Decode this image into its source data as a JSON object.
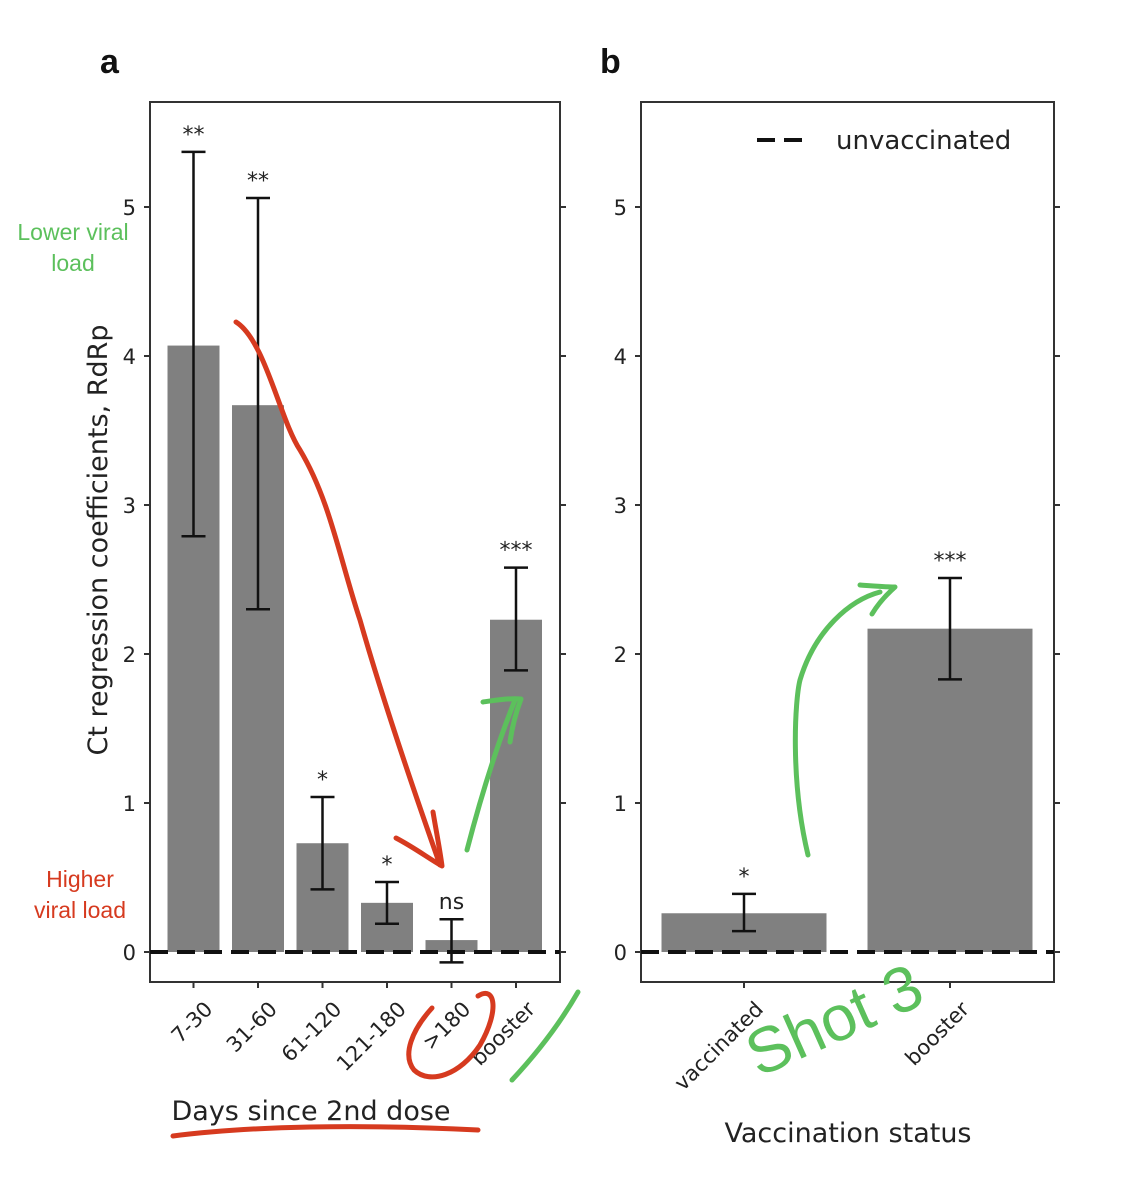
{
  "colors": {
    "bar": "#808080",
    "axis": "#333333",
    "text": "#222222",
    "annotation_red": "#d63a1f",
    "annotation_green": "#5cc05c"
  },
  "panels": [
    {
      "label": "a"
    },
    {
      "label": "b"
    }
  ],
  "annotations": {
    "lower_viral_load": [
      "Lower viral",
      "load"
    ],
    "higher_viral_load": [
      "Higher",
      "viral load"
    ],
    "handwritten": "Shot 3"
  },
  "chart_data": [
    {
      "type": "bar",
      "panel": "a",
      "categories": [
        "7-30",
        "31-60",
        "61-120",
        "121-180",
        ">180",
        "booster"
      ],
      "values": [
        4.07,
        3.67,
        0.73,
        0.33,
        0.08,
        2.23
      ],
      "error_low": [
        2.79,
        2.3,
        0.42,
        0.19,
        -0.07,
        1.89
      ],
      "error_high": [
        5.37,
        5.06,
        1.04,
        0.47,
        0.22,
        2.58
      ],
      "significance": [
        "**",
        "**",
        "*",
        "*",
        "ns",
        "***"
      ],
      "xlabel": "Days since 2nd dose",
      "ylabel": "Ct regression coefficients, RdRp",
      "ylim": [
        -0.2,
        5.7
      ],
      "yticks": [
        0,
        1,
        2,
        3,
        4,
        5
      ],
      "reference_line": {
        "value": 0,
        "style": "dashed"
      },
      "grid": false
    },
    {
      "type": "bar",
      "panel": "b",
      "categories": [
        "vaccinated",
        "booster"
      ],
      "values": [
        0.26,
        2.17
      ],
      "error_low": [
        0.14,
        1.83
      ],
      "error_high": [
        0.39,
        2.51
      ],
      "significance": [
        "*",
        "***"
      ],
      "xlabel": "Vaccination status",
      "ylabel": "",
      "ylim": [
        -0.2,
        5.7
      ],
      "yticks": [
        0,
        1,
        2,
        3,
        4,
        5
      ],
      "reference_line": {
        "value": 0,
        "style": "dashed"
      },
      "legend": {
        "entries": [
          "unvaccinated"
        ],
        "placement": "top-right"
      },
      "grid": false
    }
  ]
}
